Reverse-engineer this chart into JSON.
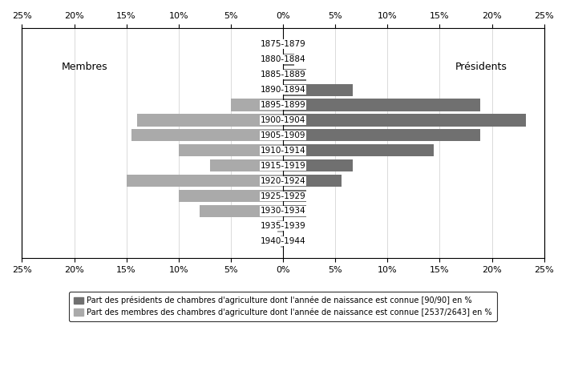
{
  "age_groups": [
    "1875-1879",
    "1880-1884",
    "1885-1889",
    "1890-1894",
    "1895-1899",
    "1900-1904",
    "1905-1909",
    "1910-1914",
    "1915-1919",
    "1920-1924",
    "1925-1929",
    "1930-1934",
    "1935-1939",
    "1940-1944"
  ],
  "presidents": [
    0.0,
    1.1,
    2.2,
    6.7,
    18.9,
    23.3,
    18.9,
    14.4,
    6.7,
    5.6,
    2.2,
    2.2,
    0.0,
    0.0
  ],
  "membres": [
    0.0,
    0.0,
    0.0,
    0.0,
    -5.0,
    -14.0,
    -14.5,
    -10.0,
    -7.0,
    -15.0,
    -10.0,
    -8.0,
    -0.5,
    -0.2
  ],
  "presidents_color": "#707070",
  "membres_color": "#aaaaaa",
  "xlim": [
    -25,
    25
  ],
  "xticks": [
    -25,
    -20,
    -15,
    -10,
    -5,
    0,
    5,
    10,
    15,
    20,
    25
  ],
  "label_left": "Membres",
  "label_right": "Présidents",
  "legend_presidents": "Part des présidents de chambres d'agriculture dont l'année de naissance est connue [90/90] en %",
  "legend_membres": "Part des membres des chambres d'agriculture dont l'année de naissance est connue [2537/2643] en %",
  "background_color": "#ffffff",
  "grid_color": "#cccccc",
  "bar_height": 0.8,
  "fontsize_ticks": 8,
  "fontsize_labels": 8,
  "fontsize_age": 7.5,
  "fontsize_legend": 7
}
